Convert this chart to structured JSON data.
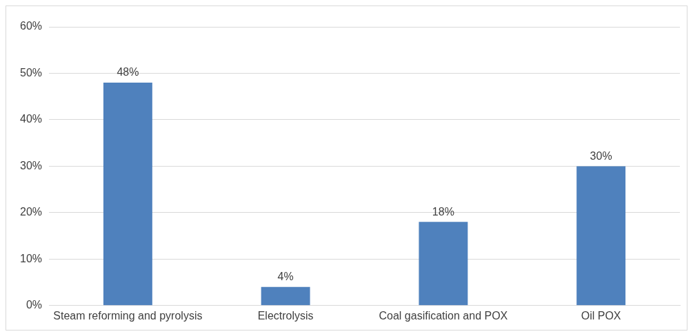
{
  "chart_data": {
    "type": "bar",
    "categories": [
      "Steam reforming and pyrolysis",
      "Electrolysis",
      "Coal gasification and POX",
      "Oil POX"
    ],
    "values": [
      48,
      4,
      18,
      30
    ],
    "color": "#4f81bd",
    "value_labels": [
      "48%",
      "4%",
      "18%",
      "30%"
    ],
    "ylim": [
      0,
      60
    ],
    "yticks": [
      {
        "value": 0,
        "label": "0%"
      },
      {
        "value": 10,
        "label": "10%"
      },
      {
        "value": 20,
        "label": "20%"
      },
      {
        "value": 30,
        "label": "30%"
      },
      {
        "value": 40,
        "label": "40%"
      },
      {
        "value": 50,
        "label": "50%"
      },
      {
        "value": 60,
        "label": "60%"
      }
    ],
    "grid": "y"
  }
}
